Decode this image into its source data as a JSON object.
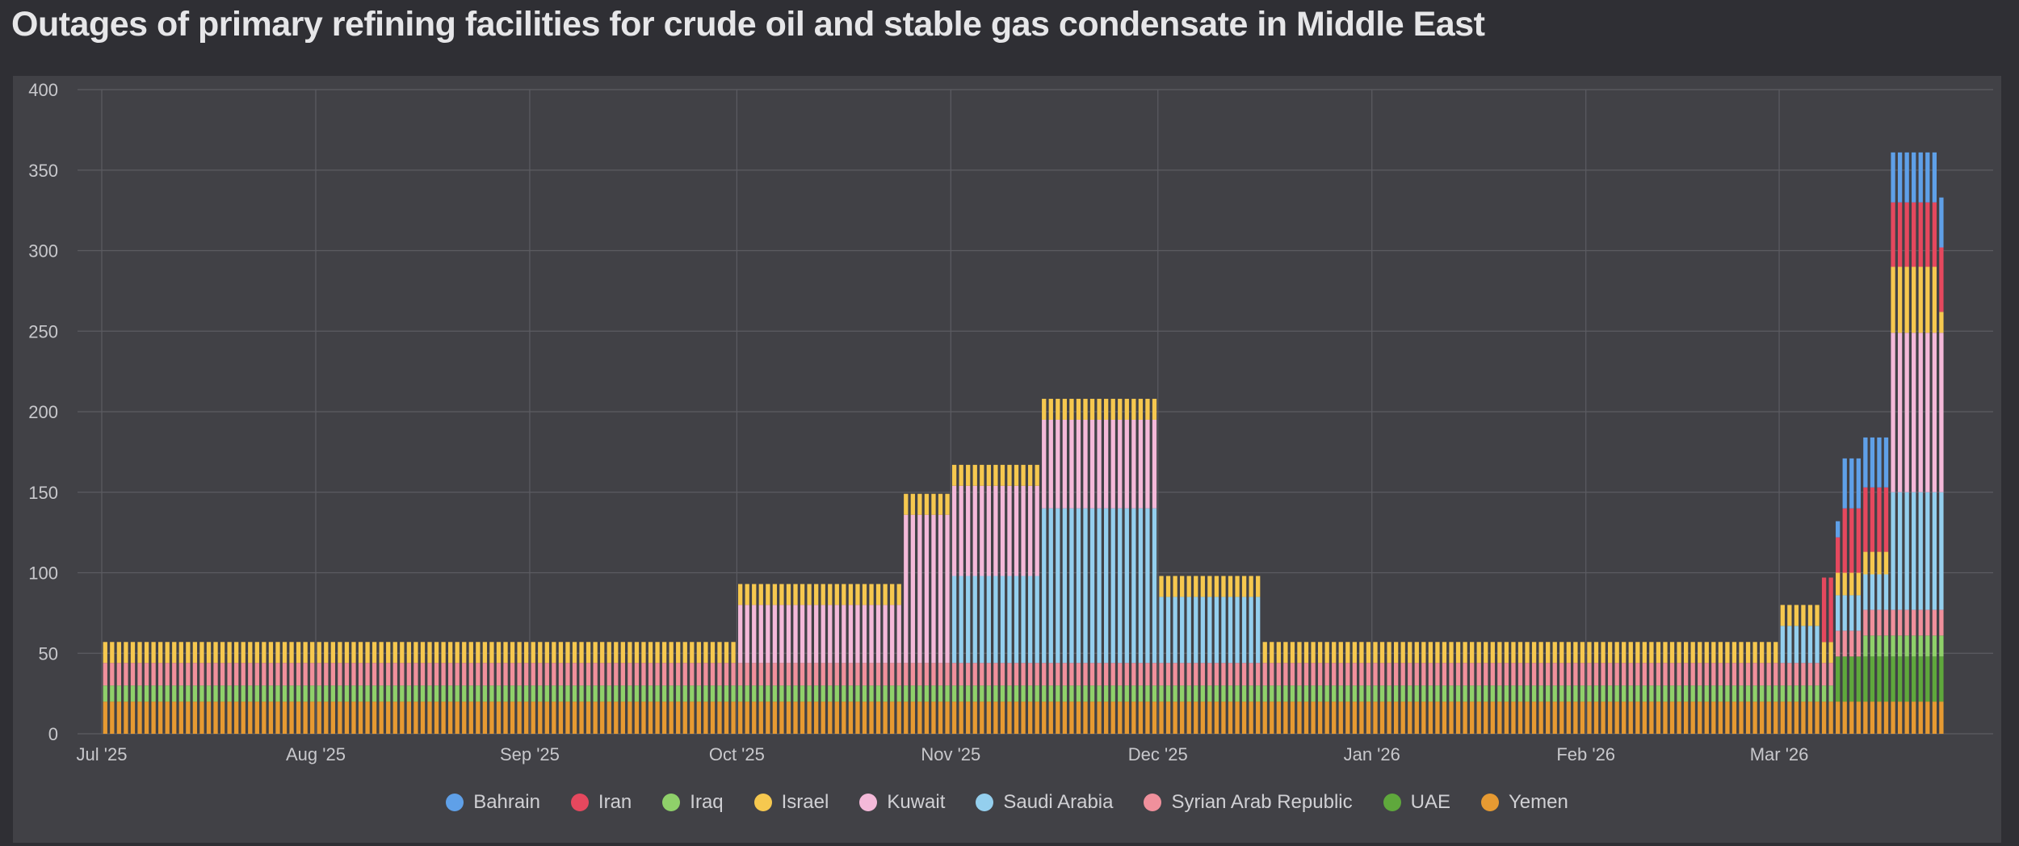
{
  "page": {
    "title": "Outages of primary refining facilities for crude oil and stable gas condensate in Middle East"
  },
  "colors": {
    "grid": "#5c5c62",
    "axis_text": "#c8c8cc",
    "bar_gap": "#2a2a2e"
  },
  "chart_data": {
    "type": "bar",
    "stacked": true,
    "title": "Outages of primary refining facilities for crude oil and stable gas condensate in Middle East",
    "xlabel": "",
    "ylabel": "",
    "x_ticks": [
      "Jul '25",
      "Aug '25",
      "Sep '25",
      "Oct '25",
      "Nov '25",
      "Dec '25",
      "Jan '26",
      "Feb '26",
      "Mar '26"
    ],
    "x_range": [
      "2025-07-01",
      "2026-03-31"
    ],
    "ylim": [
      0,
      400
    ],
    "y_ticks": [
      0,
      50,
      100,
      150,
      200,
      250,
      300,
      350,
      400
    ],
    "grid": true,
    "legend": "bottom",
    "bar_frequency": "daily",
    "stack_order": [
      "Yemen",
      "UAE",
      "Iraq",
      "Syrian Arab Republic",
      "Saudi Arabia",
      "Kuwait",
      "Israel",
      "Iran",
      "Bahrain"
    ],
    "legend_order": [
      "Bahrain",
      "Iran",
      "Iraq",
      "Israel",
      "Kuwait",
      "Saudi Arabia",
      "Syrian Arab Republic",
      "UAE",
      "Yemen"
    ],
    "series_colors": {
      "Bahrain": "#5fa0e8",
      "Iran": "#e5485e",
      "Iraq": "#8fd06a",
      "Israel": "#f6c84f",
      "Kuwait": "#f4b9d9",
      "Saudi Arabia": "#94cfee",
      "Syrian Arab Republic": "#f0909c",
      "UAE": "#5fa83c",
      "Yemen": "#e69a32"
    },
    "periods": [
      {
        "start": "2025-07-01",
        "end": "2025-09-30",
        "values": {
          "Yemen": 20,
          "UAE": 0,
          "Iraq": 10,
          "Syrian Arab Republic": 14,
          "Saudi Arabia": 0,
          "Kuwait": 0,
          "Israel": 13,
          "Iran": 0,
          "Bahrain": 0
        }
      },
      {
        "start": "2025-10-01",
        "end": "2025-10-24",
        "values": {
          "Yemen": 20,
          "UAE": 0,
          "Iraq": 10,
          "Syrian Arab Republic": 14,
          "Saudi Arabia": 0,
          "Kuwait": 36,
          "Israel": 13,
          "Iran": 0,
          "Bahrain": 0
        }
      },
      {
        "start": "2025-10-25",
        "end": "2025-10-31",
        "values": {
          "Yemen": 20,
          "UAE": 0,
          "Iraq": 10,
          "Syrian Arab Republic": 14,
          "Saudi Arabia": 0,
          "Kuwait": 92,
          "Israel": 13,
          "Iran": 0,
          "Bahrain": 0
        }
      },
      {
        "start": "2025-11-01",
        "end": "2025-11-13",
        "values": {
          "Yemen": 20,
          "UAE": 0,
          "Iraq": 10,
          "Syrian Arab Republic": 14,
          "Saudi Arabia": 54,
          "Kuwait": 56,
          "Israel": 13,
          "Iran": 0,
          "Bahrain": 0
        }
      },
      {
        "start": "2025-11-14",
        "end": "2025-11-30",
        "values": {
          "Yemen": 20,
          "UAE": 0,
          "Iraq": 10,
          "Syrian Arab Republic": 14,
          "Saudi Arabia": 96,
          "Kuwait": 55,
          "Israel": 13,
          "Iran": 0,
          "Bahrain": 0
        }
      },
      {
        "start": "2025-12-01",
        "end": "2025-12-15",
        "values": {
          "Yemen": 20,
          "UAE": 0,
          "Iraq": 10,
          "Syrian Arab Republic": 14,
          "Saudi Arabia": 41,
          "Kuwait": 0,
          "Israel": 13,
          "Iran": 0,
          "Bahrain": 0
        }
      },
      {
        "start": "2025-12-16",
        "end": "2026-02-28",
        "values": {
          "Yemen": 20,
          "UAE": 0,
          "Iraq": 10,
          "Syrian Arab Republic": 14,
          "Saudi Arabia": 0,
          "Kuwait": 0,
          "Israel": 13,
          "Iran": 0,
          "Bahrain": 0
        }
      },
      {
        "start": "2026-03-01",
        "end": "2026-03-06",
        "values": {
          "Yemen": 20,
          "UAE": 0,
          "Iraq": 10,
          "Syrian Arab Republic": 14,
          "Saudi Arabia": 23,
          "Kuwait": 0,
          "Israel": 13,
          "Iran": 0,
          "Bahrain": 0
        }
      },
      {
        "start": "2026-03-07",
        "end": "2026-03-08",
        "values": {
          "Yemen": 20,
          "UAE": 0,
          "Iraq": 10,
          "Syrian Arab Republic": 14,
          "Saudi Arabia": 0,
          "Kuwait": 0,
          "Israel": 13,
          "Iran": 40,
          "Bahrain": 0
        }
      },
      {
        "start": "2026-03-09",
        "end": "2026-03-09",
        "values": {
          "Yemen": 20,
          "UAE": 28,
          "Iraq": 0,
          "Syrian Arab Republic": 16,
          "Saudi Arabia": 22,
          "Kuwait": 0,
          "Israel": 14,
          "Iran": 22,
          "Bahrain": 10
        }
      },
      {
        "start": "2026-03-10",
        "end": "2026-03-12",
        "values": {
          "Yemen": 20,
          "UAE": 28,
          "Iraq": 0,
          "Syrian Arab Republic": 16,
          "Saudi Arabia": 22,
          "Kuwait": 0,
          "Israel": 14,
          "Iran": 40,
          "Bahrain": 31
        }
      },
      {
        "start": "2026-03-13",
        "end": "2026-03-16",
        "values": {
          "Yemen": 20,
          "UAE": 28,
          "Iraq": 13,
          "Syrian Arab Republic": 16,
          "Saudi Arabia": 22,
          "Kuwait": 0,
          "Israel": 14,
          "Iran": 40,
          "Bahrain": 31
        }
      },
      {
        "start": "2026-03-17",
        "end": "2026-03-23",
        "values": {
          "Yemen": 20,
          "UAE": 28,
          "Iraq": 13,
          "Syrian Arab Republic": 16,
          "Saudi Arabia": 73,
          "Kuwait": 99,
          "Israel": 41,
          "Iran": 40,
          "Bahrain": 31
        }
      },
      {
        "start": "2026-03-24",
        "end": "2026-03-24",
        "values": {
          "Yemen": 20,
          "UAE": 28,
          "Iraq": 13,
          "Syrian Arab Republic": 16,
          "Saudi Arabia": 73,
          "Kuwait": 99,
          "Israel": 13,
          "Iran": 40,
          "Bahrain": 31
        }
      }
    ]
  }
}
